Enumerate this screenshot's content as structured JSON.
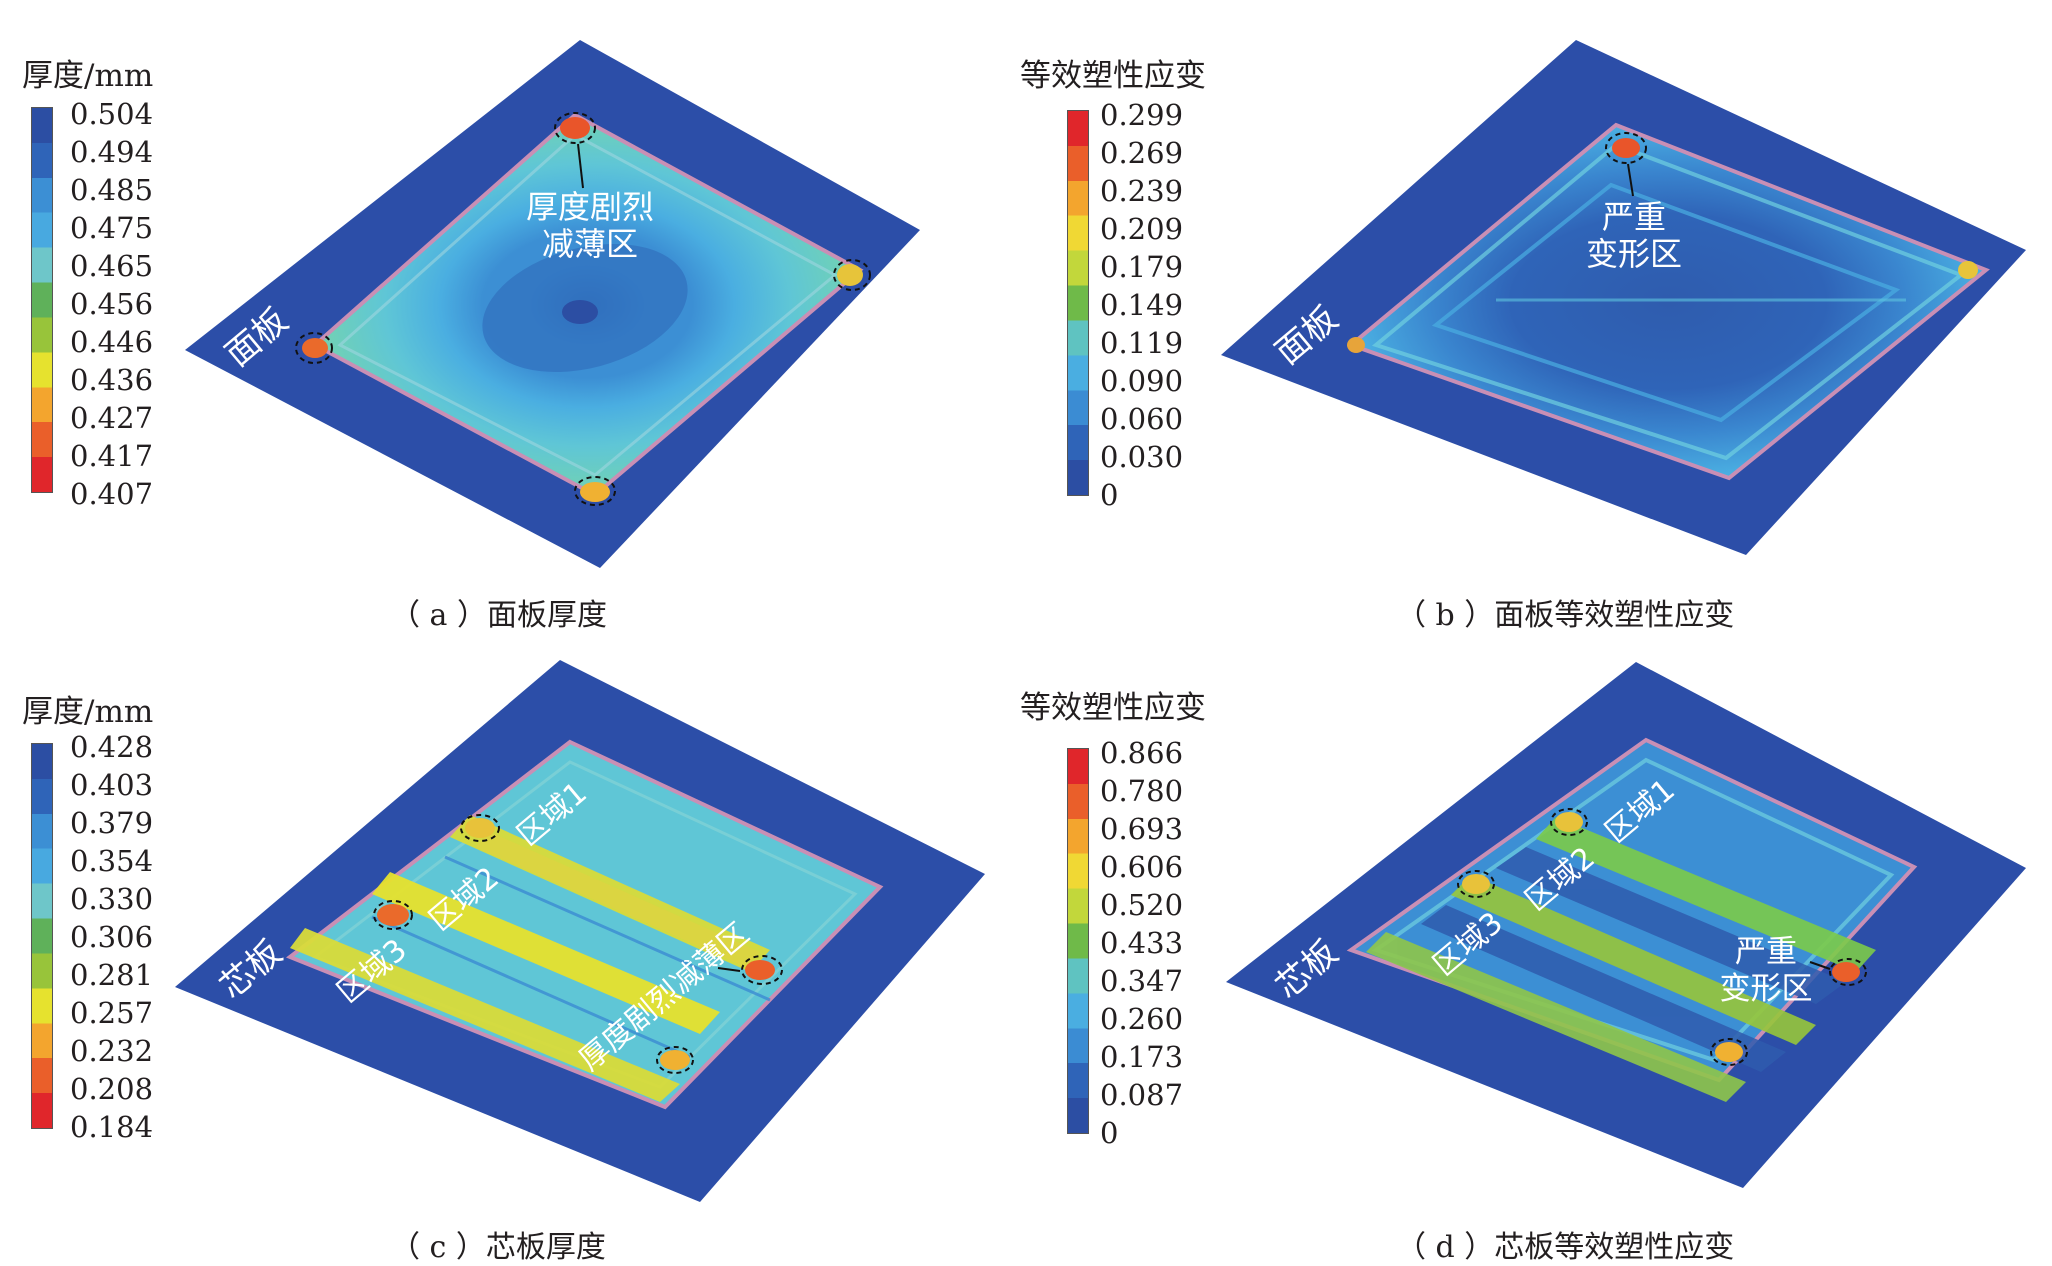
{
  "colors": {
    "plate_blue": "#2c4ea8",
    "legend_thickness": [
      "#2c4ea3",
      "#2f64b8",
      "#3c8fd4",
      "#48a9e0",
      "#6ec6c9",
      "#5fb15a",
      "#98c43a",
      "#e6e22e",
      "#f3a52e",
      "#ea5f2a",
      "#e0262b"
    ],
    "legend_strain": [
      "#e0262b",
      "#ea5f2a",
      "#f3a52e",
      "#f0d834",
      "#c2d73b",
      "#6fba49",
      "#5fc3c1",
      "#4aaee1",
      "#3b8cd3",
      "#2f64b8",
      "#2c4ea3"
    ]
  },
  "panels": [
    {
      "id": "a",
      "legend_title": "厚度/mm",
      "legend_values": [
        "0.504",
        "0.494",
        "0.485",
        "0.475",
        "0.465",
        "0.456",
        "0.446",
        "0.436",
        "0.427",
        "0.417",
        "0.407"
      ],
      "plate_label": "面板",
      "callouts": [
        "厚度剧烈",
        "减薄区"
      ],
      "caption": "（ a ）面板厚度"
    },
    {
      "id": "b",
      "legend_title": "等效塑性应变",
      "legend_values": [
        "0.299",
        "0.269",
        "0.239",
        "0.209",
        "0.179",
        "0.149",
        "0.119",
        "0.090",
        "0.060",
        "0.030",
        "0"
      ],
      "plate_label": "面板",
      "callouts": [
        "严重",
        "变形区"
      ],
      "caption": "（ b ）面板等效塑性应变"
    },
    {
      "id": "c",
      "legend_title": "厚度/mm",
      "legend_values": [
        "0.428",
        "0.403",
        "0.379",
        "0.354",
        "0.330",
        "0.306",
        "0.281",
        "0.257",
        "0.232",
        "0.208",
        "0.184"
      ],
      "plate_label": "芯板",
      "region_labels": [
        "区域1",
        "区域2",
        "区域3"
      ],
      "callouts": [
        "厚度剧烈减薄区"
      ],
      "caption": "（ c ）芯板厚度"
    },
    {
      "id": "d",
      "legend_title": "等效塑性应变",
      "legend_values": [
        "0.866",
        "0.780",
        "0.693",
        "0.606",
        "0.520",
        "0.433",
        "0.347",
        "0.260",
        "0.173",
        "0.087",
        "0"
      ],
      "plate_label": "芯板",
      "region_labels": [
        "区域1",
        "区域2",
        "区域3"
      ],
      "callouts": [
        "严重",
        "变形区"
      ],
      "caption": "（ d ）芯板等效塑性应变"
    }
  ]
}
